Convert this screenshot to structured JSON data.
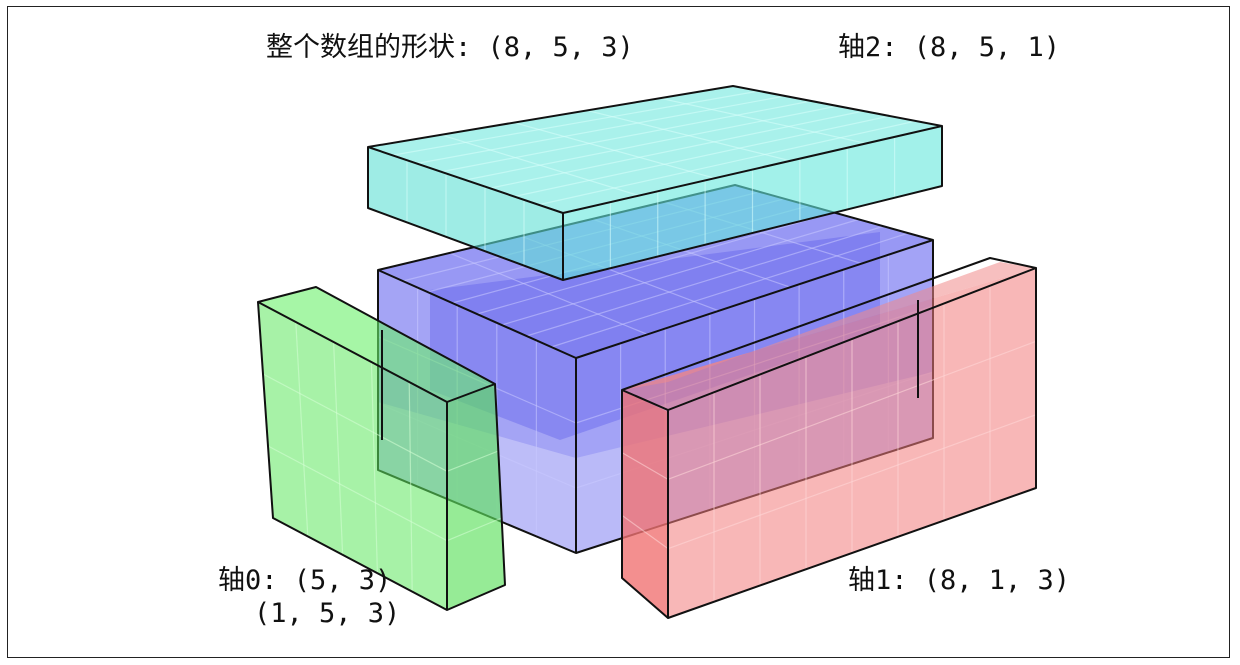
{
  "labels": {
    "whole_shape": "整个数组的形状: (8, 5, 3)",
    "axis2": "轴2: (8, 5, 1)",
    "axis0_line1": "轴0: (5, 3)",
    "axis0_line2": "(1, 5, 3)",
    "axis1": "轴1: (8, 1, 3)"
  },
  "colors": {
    "main": "#6f6ff0",
    "axis2": "#5fe8dc",
    "axis0": "#5ce85c",
    "axis1": "#f07a7a",
    "edge": "#111111"
  }
}
